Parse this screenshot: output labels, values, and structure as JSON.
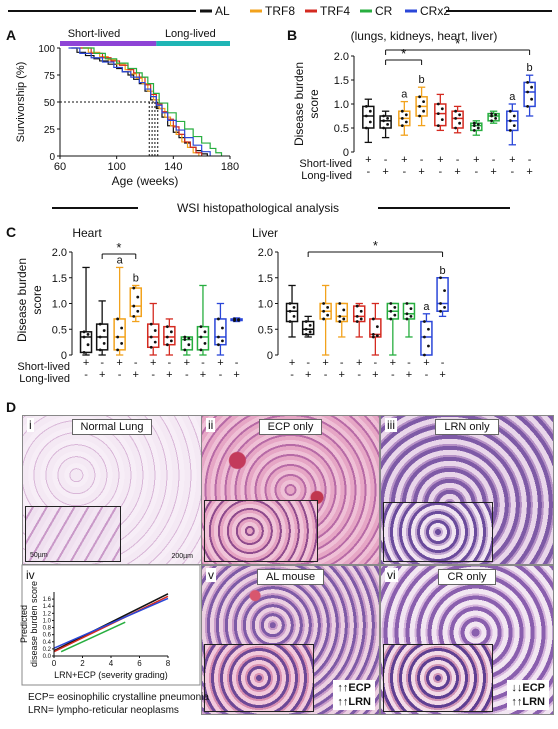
{
  "legend": {
    "items": [
      {
        "label": "AL",
        "color": "#111111"
      },
      {
        "label": "TRF8",
        "color": "#f2a21c"
      },
      {
        "label": "TRF4",
        "color": "#d42a20"
      },
      {
        "label": "CR",
        "color": "#27ae3f"
      },
      {
        "label": "CRx2",
        "color": "#2a46d8"
      }
    ]
  },
  "panels": {
    "A": "A",
    "B": "B",
    "C": "C",
    "D": "D",
    "wsi_title": "WSI histopathological analysis",
    "short_lived": "Short-lived",
    "long_lived": "Long-lived"
  },
  "chart_data": [
    {
      "id": "A",
      "type": "line",
      "ylabel": "Survivorship (%)",
      "xlabel": "Age (weeks)",
      "xlim": [
        60,
        180
      ],
      "ylim": [
        0,
        100
      ],
      "xticks": [
        60,
        100,
        140,
        180
      ],
      "yticks": [
        0,
        25,
        50,
        75,
        100
      ],
      "bars": [
        {
          "label": "Short-lived",
          "from": 60,
          "to": 128,
          "color": "#8e44d6"
        },
        {
          "label": "Long-lived",
          "from": 128,
          "to": 180,
          "color": "#1fb5b5"
        }
      ],
      "median_lines": [
        123,
        125,
        127,
        129
      ],
      "series": [
        {
          "name": "AL",
          "color": "#111111",
          "x": [
            68,
            72,
            78,
            84,
            88,
            94,
            100,
            104,
            108,
            112,
            116,
            120,
            124,
            128,
            132,
            136,
            140,
            144,
            148,
            152,
            156,
            160,
            164
          ],
          "y": [
            100,
            96,
            93,
            90,
            88,
            85,
            81,
            78,
            75,
            71,
            67,
            60,
            52,
            44,
            36,
            28,
            22,
            17,
            12,
            8,
            5,
            2,
            0
          ]
        },
        {
          "name": "TRF8",
          "color": "#f2a21c",
          "x": [
            72,
            80,
            88,
            94,
            100,
            106,
            110,
            114,
            118,
            122,
            126,
            130,
            134,
            138,
            142,
            146,
            150,
            154,
            158
          ],
          "y": [
            100,
            96,
            92,
            89,
            85,
            80,
            76,
            72,
            67,
            60,
            52,
            44,
            36,
            28,
            20,
            13,
            8,
            3,
            0
          ]
        },
        {
          "name": "TRF4",
          "color": "#d42a20",
          "x": [
            74,
            82,
            90,
            96,
            102,
            108,
            112,
            116,
            120,
            124,
            128,
            132,
            136,
            140,
            144,
            148,
            152,
            156,
            160
          ],
          "y": [
            100,
            95,
            91,
            88,
            84,
            80,
            77,
            73,
            66,
            57,
            48,
            41,
            34,
            27,
            20,
            13,
            8,
            3,
            0
          ]
        },
        {
          "name": "CR",
          "color": "#27ae3f",
          "x": [
            76,
            84,
            92,
            100,
            108,
            114,
            118,
            122,
            126,
            130,
            136,
            142,
            148,
            154,
            160,
            166,
            170,
            174
          ],
          "y": [
            100,
            95,
            90,
            86,
            81,
            77,
            73,
            67,
            58,
            49,
            40,
            32,
            25,
            18,
            12,
            7,
            3,
            0
          ]
        },
        {
          "name": "CRx2",
          "color": "#2a46d8",
          "x": [
            66,
            74,
            82,
            90,
            98,
            104,
            110,
            116,
            120,
            124,
            128,
            132,
            136,
            142,
            148,
            154,
            160,
            166
          ],
          "y": [
            100,
            95,
            91,
            87,
            82,
            78,
            73,
            68,
            62,
            55,
            47,
            40,
            33,
            24,
            17,
            10,
            4,
            0
          ]
        }
      ]
    },
    {
      "id": "B",
      "type": "box",
      "title": "(lungs, kidneys, heart, liver)",
      "ylabel": "Disease burden score",
      "ylim": [
        0,
        2.0
      ],
      "yticks": [
        "0",
        "0.5",
        "1.0",
        "1.5",
        "2.0"
      ],
      "row_labels": [
        "Short-lived",
        "Long-lived"
      ],
      "group_marks": [
        "+",
        "-"
      ],
      "groups": [
        {
          "name": "AL",
          "color": "#111111",
          "boxes": [
            {
              "min": 0.2,
              "q1": 0.5,
              "med": 0.75,
              "q3": 0.95,
              "max": 1.1
            },
            {
              "min": 0.3,
              "q1": 0.5,
              "med": 0.65,
              "q3": 0.75,
              "max": 0.85
            }
          ],
          "letters": [
            "",
            ""
          ]
        },
        {
          "name": "TRF8",
          "color": "#f2a21c",
          "boxes": [
            {
              "min": 0.35,
              "q1": 0.55,
              "med": 0.7,
              "q3": 0.85,
              "max": 1.05
            },
            {
              "min": 0.55,
              "q1": 0.75,
              "med": 0.95,
              "q3": 1.15,
              "max": 1.35
            }
          ],
          "letters": [
            "a",
            "b"
          ]
        },
        {
          "name": "TRF4",
          "color": "#d42a20",
          "boxes": [
            {
              "min": 0.45,
              "q1": 0.55,
              "med": 0.8,
              "q3": 1.0,
              "max": 1.2
            },
            {
              "min": 0.4,
              "q1": 0.5,
              "med": 0.7,
              "q3": 0.85,
              "max": 0.95
            }
          ],
          "letters": [
            "",
            ""
          ]
        },
        {
          "name": "CR",
          "color": "#27ae3f",
          "boxes": [
            {
              "min": 0.35,
              "q1": 0.45,
              "med": 0.55,
              "q3": 0.6,
              "max": 0.65
            },
            {
              "min": 0.6,
              "q1": 0.65,
              "med": 0.75,
              "q3": 0.8,
              "max": 0.85
            }
          ],
          "letters": [
            "",
            ""
          ]
        },
        {
          "name": "CRx2",
          "color": "#2a46d8",
          "boxes": [
            {
              "min": 0.15,
              "q1": 0.45,
              "med": 0.65,
              "q3": 0.85,
              "max": 1.0
            },
            {
              "min": 0.75,
              "q1": 0.95,
              "med": 1.25,
              "q3": 1.45,
              "max": 1.6
            }
          ],
          "letters": [
            "a",
            "b"
          ]
        }
      ],
      "significance": [
        {
          "from": 0,
          "to": 4,
          "label": "*"
        },
        {
          "from": 0,
          "to": 1,
          "label": "*"
        }
      ]
    },
    {
      "id": "C-heart",
      "type": "box",
      "title": "Heart",
      "ylabel": "Disease burden score",
      "ylim": [
        0,
        2.0
      ],
      "yticks": [
        "0",
        "0.5",
        "1.0",
        "1.5",
        "2.0"
      ],
      "groups": [
        {
          "name": "AL",
          "color": "#111111",
          "boxes": [
            {
              "min": 0,
              "q1": 0.05,
              "med": 0.35,
              "q3": 0.45,
              "max": 1.7
            },
            {
              "min": 0,
              "q1": 0.1,
              "med": 0.35,
              "q3": 0.6,
              "max": 1.05
            }
          ],
          "letters": [
            "",
            ""
          ]
        },
        {
          "name": "TRF8",
          "color": "#f2a21c",
          "boxes": [
            {
              "min": 0,
              "q1": 0.1,
              "med": 0.35,
              "q3": 0.7,
              "max": 1.7
            },
            {
              "min": 0.65,
              "q1": 0.75,
              "med": 0.95,
              "q3": 1.3,
              "max": 1.35
            }
          ],
          "letters": [
            "a",
            "b"
          ]
        },
        {
          "name": "TRF4",
          "color": "#d42a20",
          "boxes": [
            {
              "min": 0,
              "q1": 0.15,
              "med": 0.35,
              "q3": 0.6,
              "max": 1.0
            },
            {
              "min": 0,
              "q1": 0.2,
              "med": 0.35,
              "q3": 0.55,
              "max": 0.7
            }
          ],
          "letters": [
            "",
            ""
          ]
        },
        {
          "name": "CR",
          "color": "#27ae3f",
          "boxes": [
            {
              "min": 0,
              "q1": 0.1,
              "med": 0.3,
              "q3": 0.35,
              "max": 0.35
            },
            {
              "min": 0,
              "q1": 0.1,
              "med": 0.35,
              "q3": 0.55,
              "max": 1.35
            }
          ],
          "letters": [
            "",
            ""
          ]
        },
        {
          "name": "CRx2",
          "color": "#2a46d8",
          "boxes": [
            {
              "min": 0,
              "q1": 0.2,
              "med": 0.35,
              "q3": 0.7,
              "max": 1.0
            },
            {
              "min": 0.65,
              "q1": 0.67,
              "med": 0.68,
              "q3": 0.7,
              "max": 0.72
            }
          ],
          "letters": [
            "",
            ""
          ]
        }
      ],
      "significance": [
        {
          "from": 0,
          "to": 1,
          "label": "*"
        }
      ]
    },
    {
      "id": "C-liver",
      "type": "box",
      "title": "Liver",
      "ylim": [
        0,
        2.0
      ],
      "yticks": [
        "0",
        "0.5",
        "1.0",
        "1.5",
        "2.0"
      ],
      "groups": [
        {
          "name": "AL",
          "color": "#111111",
          "boxes": [
            {
              "min": 0.35,
              "q1": 0.65,
              "med": 0.85,
              "q3": 1.0,
              "max": 1.35
            },
            {
              "min": 0.35,
              "q1": 0.4,
              "med": 0.5,
              "q3": 0.65,
              "max": 0.75
            }
          ],
          "letters": [
            "",
            ""
          ]
        },
        {
          "name": "TRF8",
          "color": "#f2a21c",
          "boxes": [
            {
              "min": 0,
              "q1": 0.7,
              "med": 0.85,
              "q3": 1.0,
              "max": 1.35
            },
            {
              "min": 0.35,
              "q1": 0.65,
              "med": 0.75,
              "q3": 1.0,
              "max": 1.0
            }
          ],
          "letters": [
            "",
            ""
          ]
        },
        {
          "name": "TRF4",
          "color": "#d42a20",
          "boxes": [
            {
              "min": 0.35,
              "q1": 0.65,
              "med": 0.75,
              "q3": 0.95,
              "max": 1.0
            },
            {
              "min": 0,
              "q1": 0.35,
              "med": 0.4,
              "q3": 0.7,
              "max": 1.0
            }
          ],
          "letters": [
            "",
            ""
          ]
        },
        {
          "name": "CR",
          "color": "#27ae3f",
          "boxes": [
            {
              "min": 0,
              "q1": 0.7,
              "med": 0.85,
              "q3": 1.0,
              "max": 1.0
            },
            {
              "min": 0.35,
              "q1": 0.7,
              "med": 0.8,
              "q3": 1.0,
              "max": 1.0
            }
          ],
          "letters": [
            "",
            ""
          ]
        },
        {
          "name": "CRx2",
          "color": "#2a46d8",
          "boxes": [
            {
              "min": 0,
              "q1": 0.0,
              "med": 0.35,
              "q3": 0.65,
              "max": 0.8
            },
            {
              "min": 0.75,
              "q1": 0.85,
              "med": 1.0,
              "q3": 1.5,
              "max": 1.5
            }
          ],
          "letters": [
            "a",
            "b"
          ]
        }
      ],
      "significance": [
        {
          "from": 0,
          "to": 4,
          "label": "*"
        }
      ]
    },
    {
      "id": "D-iv",
      "type": "line",
      "ylabel": "Predicted disease burden score",
      "xlabel": "LRN+ECP (severity grading)",
      "xlim": [
        0,
        8
      ],
      "ylim": [
        0,
        1.8
      ],
      "xticks": [
        0,
        2,
        4,
        6,
        8
      ],
      "yticks": [
        "0.0",
        "0.2",
        "0.4",
        "0.6",
        "0.8",
        "1.0",
        "1.2",
        "1.4",
        "1.6"
      ],
      "series": [
        {
          "name": "AL",
          "color": "#111111",
          "x": [
            0,
            8
          ],
          "y": [
            0.15,
            1.75
          ]
        },
        {
          "name": "TRF4",
          "color": "#d42a20",
          "x": [
            0,
            8
          ],
          "y": [
            0.12,
            1.68
          ]
        },
        {
          "name": "CRx2",
          "color": "#2a46d8",
          "x": [
            0,
            8
          ],
          "y": [
            0.22,
            1.62
          ]
        },
        {
          "name": "CR",
          "color": "#27ae3f",
          "x": [
            0.5,
            5
          ],
          "y": [
            0.12,
            0.95
          ]
        }
      ]
    }
  ],
  "histology": [
    {
      "roman": "i",
      "label": "Normal Lung",
      "scale_inset": "50µm",
      "scale_main": "200µm"
    },
    {
      "roman": "ii",
      "label": "ECP only"
    },
    {
      "roman": "iii",
      "label": "LRN only"
    },
    {
      "roman": "iv"
    },
    {
      "roman": "v",
      "label": "AL mouse",
      "arrow1": "↑↑ECP",
      "arrow2": "↑↑LRN"
    },
    {
      "roman": "vi",
      "label": "CR only",
      "arrow1": "↓↓ECP",
      "arrow2": "↑↑LRN"
    }
  ],
  "notes": {
    "ecp": "ECP= eosinophilic crystalline pneumonia",
    "lrn": "LRN= lympho-reticular neoplasms"
  }
}
